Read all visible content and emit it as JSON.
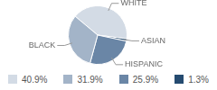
{
  "chart_data": {
    "type": "pie",
    "categories": [
      "WHITE",
      "ASIAN",
      "HISPANIC",
      "BLACK"
    ],
    "values": [
      40.9,
      1.3,
      25.9,
      31.9
    ],
    "value_labels": [
      "40.9%",
      "1.3%",
      "25.9%",
      "31.9%"
    ],
    "colors": [
      "#d3dbe5",
      "#254b70",
      "#6a86a6",
      "#a3b4c8"
    ],
    "legend": "bottom"
  }
}
